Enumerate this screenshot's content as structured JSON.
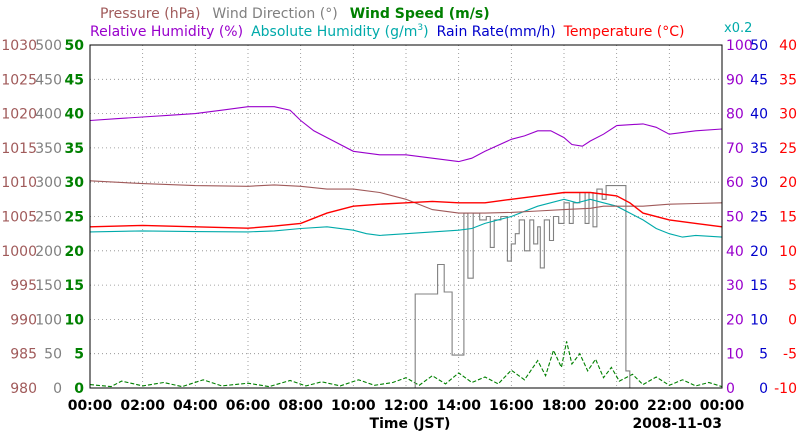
{
  "chart_data": {
    "type": "line",
    "date": "2008-11-03",
    "x_label": "Time (JST)",
    "x_ticks": [
      "00:00",
      "02:00",
      "04:00",
      "06:00",
      "08:00",
      "10:00",
      "12:00",
      "14:00",
      "16:00",
      "18:00",
      "20:00",
      "22:00",
      "00:00"
    ],
    "legend_row1": [
      {
        "name": "Pressure (hPa)",
        "color": "#a05a5a"
      },
      {
        "name": "Wind Direction (°)",
        "color": "#808080"
      },
      {
        "name": "Wind Speed (m/s)",
        "color": "#008000"
      }
    ],
    "legend_row2": [
      {
        "name": "Relative Humidity (%)",
        "color": "#9900cc"
      },
      {
        "name": "Absolute Humidity (g/m",
        "sup": "3",
        "suffix": ")",
        "color": "#00aaaa"
      },
      {
        "name": "Rain Rate(mm/h)",
        "color": "#0000cc"
      },
      {
        "name": "Temperature (°C)",
        "color": "#ff0000"
      }
    ],
    "abs_humidity_note": "x0.2",
    "axes": {
      "pressure": {
        "color": "#a05a5a",
        "range": [
          980,
          1030
        ],
        "ticks": [
          "1030",
          "1025",
          "1020",
          "1015",
          "1010",
          "1005",
          "1000",
          "995",
          "990",
          "985",
          "980"
        ]
      },
      "wind_direction": {
        "color": "#808080",
        "range": [
          0,
          500
        ],
        "ticks": [
          "500",
          "450",
          "400",
          "350",
          "300",
          "250",
          "200",
          "150",
          "100",
          "50",
          "0"
        ]
      },
      "wind_speed": {
        "color": "#008000",
        "range": [
          0,
          50
        ],
        "ticks": [
          "50",
          "45",
          "40",
          "35",
          "30",
          "25",
          "20",
          "15",
          "10",
          "5",
          "0"
        ]
      },
      "humidity": {
        "color": "#9900cc",
        "range": [
          0,
          100
        ],
        "ticks": [
          "100",
          "90",
          "80",
          "70",
          "60",
          "50",
          "40",
          "30",
          "20",
          "10",
          "0"
        ]
      },
      "rain_rate": {
        "color": "#0000cc",
        "range": [
          0,
          50
        ],
        "ticks": [
          "50",
          "45",
          "40",
          "35",
          "30",
          "25",
          "20",
          "15",
          "10",
          "5",
          "0"
        ]
      },
      "temperature": {
        "color": "#ff0000",
        "range": [
          -10,
          40
        ],
        "ticks": [
          "40",
          "35",
          "30",
          "25",
          "20",
          "15",
          "10",
          "5",
          "0",
          "-5",
          "-10"
        ]
      }
    },
    "series": [
      {
        "key": "rh",
        "name": "Relative Humidity",
        "axis": "humidity",
        "color": "#9900cc",
        "points": [
          [
            0,
            78
          ],
          [
            1,
            78.5
          ],
          [
            2,
            79
          ],
          [
            3,
            79.5
          ],
          [
            4,
            80
          ],
          [
            5,
            81
          ],
          [
            6,
            82
          ],
          [
            7,
            82
          ],
          [
            7.6,
            81
          ],
          [
            8,
            78
          ],
          [
            8.5,
            75
          ],
          [
            9,
            73
          ],
          [
            10,
            69
          ],
          [
            11,
            68
          ],
          [
            12,
            68
          ],
          [
            13,
            67
          ],
          [
            14,
            66
          ],
          [
            14.5,
            67
          ],
          [
            15,
            69
          ],
          [
            16,
            72.5
          ],
          [
            16.5,
            73.5
          ],
          [
            17,
            75
          ],
          [
            17.5,
            75
          ],
          [
            18,
            73
          ],
          [
            18.3,
            71
          ],
          [
            18.7,
            70.5
          ],
          [
            19,
            72
          ],
          [
            19.5,
            74
          ],
          [
            20,
            76.5
          ],
          [
            21,
            77
          ],
          [
            21.5,
            76
          ],
          [
            22,
            74
          ],
          [
            23,
            75
          ],
          [
            24,
            75.5
          ]
        ]
      },
      {
        "key": "pressure",
        "name": "Pressure",
        "axis": "pressure",
        "color": "#a05a5a",
        "points": [
          [
            0,
            1010.2
          ],
          [
            2,
            1009.8
          ],
          [
            4,
            1009.5
          ],
          [
            6,
            1009.4
          ],
          [
            7,
            1009.6
          ],
          [
            8,
            1009.4
          ],
          [
            9,
            1009
          ],
          [
            10,
            1009
          ],
          [
            11,
            1008.5
          ],
          [
            12,
            1007.5
          ],
          [
            13,
            1006
          ],
          [
            14,
            1005.5
          ],
          [
            15,
            1005.5
          ],
          [
            16,
            1005.6
          ],
          [
            17,
            1005.8
          ],
          [
            18,
            1006
          ],
          [
            19,
            1006.2
          ],
          [
            19.5,
            1006.5
          ],
          [
            20,
            1006.5
          ],
          [
            21,
            1006.5
          ],
          [
            22,
            1006.8
          ],
          [
            23,
            1006.9
          ],
          [
            24,
            1007
          ]
        ]
      },
      {
        "key": "abs_hum",
        "name": "Absolute Humidity x0.2",
        "axis": "humidity",
        "color": "#00aaaa",
        "points": [
          [
            0,
            45.5
          ],
          [
            2,
            45.8
          ],
          [
            4,
            45.6
          ],
          [
            6,
            45.5
          ],
          [
            7,
            45.8
          ],
          [
            8,
            46.5
          ],
          [
            9,
            47
          ],
          [
            10,
            46
          ],
          [
            10.5,
            45
          ],
          [
            11,
            44.5
          ],
          [
            12,
            45
          ],
          [
            13,
            45.5
          ],
          [
            14,
            46
          ],
          [
            14.5,
            46.5
          ],
          [
            15,
            48
          ],
          [
            16,
            50
          ],
          [
            17,
            53
          ],
          [
            18,
            55
          ],
          [
            18.5,
            54
          ],
          [
            19,
            55
          ],
          [
            19.5,
            54
          ],
          [
            20,
            53
          ],
          [
            21,
            49
          ],
          [
            21.5,
            46.5
          ],
          [
            22,
            45
          ],
          [
            22.5,
            44
          ],
          [
            23,
            44.5
          ],
          [
            24,
            44
          ]
        ]
      },
      {
        "key": "temp",
        "name": "Temperature",
        "axis": "temperature",
        "color": "#ff0000",
        "points": [
          [
            0,
            13.5
          ],
          [
            2,
            13.7
          ],
          [
            4,
            13.5
          ],
          [
            6,
            13.3
          ],
          [
            7,
            13.6
          ],
          [
            8,
            14
          ],
          [
            9,
            15.5
          ],
          [
            10,
            16.5
          ],
          [
            11,
            16.8
          ],
          [
            12,
            17
          ],
          [
            13,
            17.2
          ],
          [
            14,
            17
          ],
          [
            15,
            17
          ],
          [
            16,
            17.5
          ],
          [
            17,
            18
          ],
          [
            18,
            18.5
          ],
          [
            19,
            18.5
          ],
          [
            20,
            18
          ],
          [
            20.5,
            17
          ],
          [
            21,
            15.5
          ],
          [
            22,
            14.5
          ],
          [
            23,
            14
          ],
          [
            24,
            13.5
          ]
        ]
      },
      {
        "key": "wind_dir",
        "name": "Wind Direction",
        "axis": "wind_direction",
        "color": "#808080",
        "points": [
          [
            12.35,
            0
          ],
          [
            12.35,
            137
          ],
          [
            13.2,
            137
          ],
          [
            13.2,
            180
          ],
          [
            13.45,
            180
          ],
          [
            13.45,
            140
          ],
          [
            13.75,
            140
          ],
          [
            13.75,
            48
          ],
          [
            14.2,
            48
          ],
          [
            14.2,
            255
          ],
          [
            14.35,
            255
          ],
          [
            14.35,
            160
          ],
          [
            14.55,
            160
          ],
          [
            14.55,
            255
          ],
          [
            14.8,
            255
          ],
          [
            14.8,
            245
          ],
          [
            15.05,
            245
          ],
          [
            15.05,
            250
          ],
          [
            15.2,
            250
          ],
          [
            15.2,
            205
          ],
          [
            15.35,
            205
          ],
          [
            15.35,
            245
          ],
          [
            15.6,
            245
          ],
          [
            15.6,
            250
          ],
          [
            15.85,
            250
          ],
          [
            15.85,
            185
          ],
          [
            16,
            185
          ],
          [
            16,
            210
          ],
          [
            16.15,
            210
          ],
          [
            16.15,
            225
          ],
          [
            16.3,
            225
          ],
          [
            16.3,
            245
          ],
          [
            16.5,
            245
          ],
          [
            16.5,
            200
          ],
          [
            16.7,
            200
          ],
          [
            16.7,
            245
          ],
          [
            16.85,
            245
          ],
          [
            16.85,
            210
          ],
          [
            17,
            210
          ],
          [
            17,
            235
          ],
          [
            17.1,
            235
          ],
          [
            17.1,
            175
          ],
          [
            17.25,
            175
          ],
          [
            17.25,
            245
          ],
          [
            17.45,
            245
          ],
          [
            17.45,
            215
          ],
          [
            17.6,
            215
          ],
          [
            17.6,
            250
          ],
          [
            17.8,
            250
          ],
          [
            17.8,
            240
          ],
          [
            18,
            240
          ],
          [
            18,
            270
          ],
          [
            18.2,
            270
          ],
          [
            18.2,
            240
          ],
          [
            18.35,
            240
          ],
          [
            18.35,
            270
          ],
          [
            18.6,
            270
          ],
          [
            18.6,
            285
          ],
          [
            18.8,
            285
          ],
          [
            18.8,
            240
          ],
          [
            18.95,
            240
          ],
          [
            18.95,
            285
          ],
          [
            19.1,
            285
          ],
          [
            19.1,
            235
          ],
          [
            19.25,
            235
          ],
          [
            19.25,
            290
          ],
          [
            19.45,
            290
          ],
          [
            19.45,
            275
          ],
          [
            19.6,
            275
          ],
          [
            19.6,
            295
          ],
          [
            20.35,
            295
          ],
          [
            20.35,
            25
          ],
          [
            20.5,
            25
          ],
          [
            20.5,
            0
          ]
        ]
      },
      {
        "key": "wind_speed",
        "name": "Wind Speed",
        "axis": "wind_speed",
        "color": "#008000",
        "dashed": true,
        "points": [
          [
            0,
            0.5
          ],
          [
            0.8,
            0.2
          ],
          [
            1.2,
            1
          ],
          [
            2,
            0.3
          ],
          [
            2.8,
            0.8
          ],
          [
            3.5,
            0.2
          ],
          [
            4.3,
            1.2
          ],
          [
            5,
            0.3
          ],
          [
            6,
            0.7
          ],
          [
            6.8,
            0.2
          ],
          [
            7.6,
            1.1
          ],
          [
            8.2,
            0.3
          ],
          [
            8.8,
            0.9
          ],
          [
            9.5,
            0.3
          ],
          [
            10.2,
            1.2
          ],
          [
            10.8,
            0.4
          ],
          [
            11.5,
            0.8
          ],
          [
            12,
            1.5
          ],
          [
            12.5,
            0.4
          ],
          [
            13,
            1.8
          ],
          [
            13.5,
            0.6
          ],
          [
            14,
            2.2
          ],
          [
            14.5,
            0.8
          ],
          [
            15,
            1.6
          ],
          [
            15.5,
            0.6
          ],
          [
            16,
            2.6
          ],
          [
            16.5,
            1.2
          ],
          [
            17,
            4
          ],
          [
            17.3,
            1.8
          ],
          [
            17.6,
            5.5
          ],
          [
            17.9,
            3
          ],
          [
            18.1,
            6.8
          ],
          [
            18.3,
            3.5
          ],
          [
            18.6,
            5
          ],
          [
            18.9,
            2.5
          ],
          [
            19.2,
            4.2
          ],
          [
            19.5,
            1.5
          ],
          [
            19.8,
            3
          ],
          [
            20.1,
            1
          ],
          [
            20.6,
            2
          ],
          [
            21,
            0.5
          ],
          [
            21.5,
            1.6
          ],
          [
            22,
            0.4
          ],
          [
            22.5,
            1.2
          ],
          [
            23,
            0.3
          ],
          [
            23.5,
            0.8
          ],
          [
            24,
            0.2
          ]
        ]
      }
    ]
  }
}
